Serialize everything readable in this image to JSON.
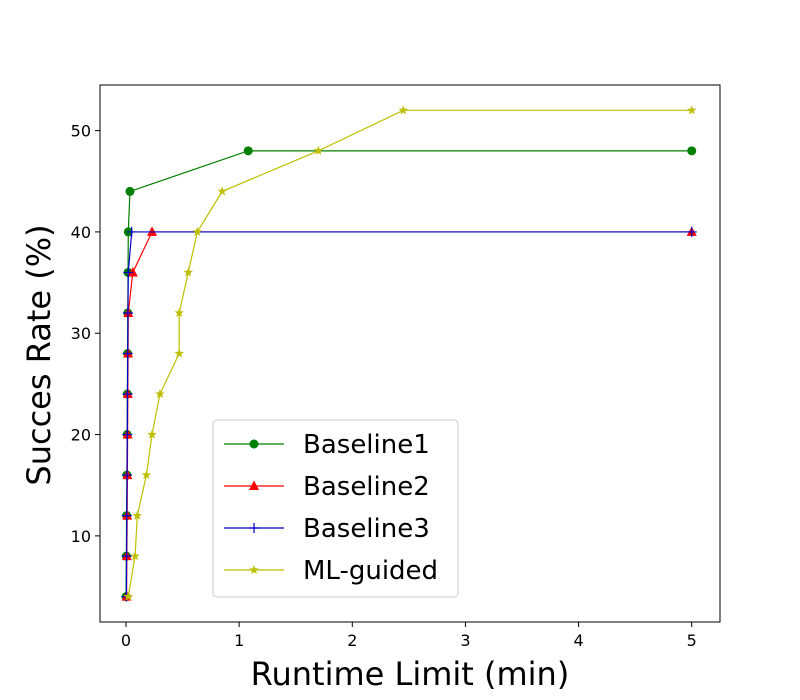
{
  "chart_data": {
    "type": "line",
    "title": "",
    "xlabel": "Runtime Limit (min)",
    "ylabel": "Succes Rate (%)",
    "xlim": [
      -0.23,
      5.25
    ],
    "ylim": [
      1.5,
      54.5
    ],
    "xticks": [
      0,
      1,
      2,
      3,
      4,
      5
    ],
    "yticks": [
      10,
      20,
      30,
      40,
      50
    ],
    "grid": false,
    "legend_position": "lower-center",
    "series": [
      {
        "name": "Baseline1",
        "color": "#008000",
        "marker": "circle",
        "points": [
          [
            0.0,
            4
          ],
          [
            0.003,
            8
          ],
          [
            0.005,
            12
          ],
          [
            0.008,
            16
          ],
          [
            0.01,
            20
          ],
          [
            0.012,
            24
          ],
          [
            0.014,
            28
          ],
          [
            0.016,
            32
          ],
          [
            0.018,
            36
          ],
          [
            0.02,
            40
          ],
          [
            0.035,
            44
          ],
          [
            1.08,
            48
          ],
          [
            5.0,
            48
          ]
        ]
      },
      {
        "name": "Baseline2",
        "color": "#ff0000",
        "marker": "triangle",
        "points": [
          [
            0.005,
            4
          ],
          [
            0.007,
            8
          ],
          [
            0.01,
            12
          ],
          [
            0.012,
            16
          ],
          [
            0.014,
            20
          ],
          [
            0.016,
            24
          ],
          [
            0.018,
            28
          ],
          [
            0.02,
            32
          ],
          [
            0.06,
            36
          ],
          [
            0.23,
            40
          ],
          [
            5.0,
            40
          ]
        ]
      },
      {
        "name": "Baseline3",
        "color": "#0000cc",
        "marker": "plus",
        "points": [
          [
            0.003,
            4
          ],
          [
            0.005,
            8
          ],
          [
            0.007,
            12
          ],
          [
            0.009,
            16
          ],
          [
            0.011,
            20
          ],
          [
            0.013,
            24
          ],
          [
            0.015,
            28
          ],
          [
            0.017,
            32
          ],
          [
            0.02,
            36
          ],
          [
            0.05,
            40
          ],
          [
            5.0,
            40
          ]
        ]
      },
      {
        "name": "ML-guided",
        "color": "#bfbf00",
        "marker": "star",
        "points": [
          [
            0.02,
            4
          ],
          [
            0.08,
            8
          ],
          [
            0.1,
            12
          ],
          [
            0.18,
            16
          ],
          [
            0.23,
            20
          ],
          [
            0.3,
            24
          ],
          [
            0.47,
            28
          ],
          [
            0.47,
            32
          ],
          [
            0.55,
            36
          ],
          [
            0.63,
            40
          ],
          [
            0.85,
            44
          ],
          [
            1.7,
            48
          ],
          [
            2.45,
            52
          ],
          [
            5.0,
            52
          ]
        ]
      }
    ]
  }
}
